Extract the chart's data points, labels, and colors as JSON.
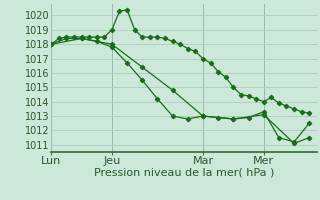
{
  "bg_color": "#cce8d8",
  "grid_color": "#aaccc0",
  "line_color": "#1a6e1a",
  "marker_color": "#1a6e1a",
  "xlabel": "Pression niveau de la mer( hPa )",
  "xlabel_fontsize": 8,
  "ylim": [
    1010.5,
    1020.8
  ],
  "yticks": [
    1011,
    1012,
    1013,
    1014,
    1015,
    1016,
    1017,
    1018,
    1019,
    1020
  ],
  "day_labels": [
    "Lun",
    "Jeu",
    "Mar",
    "Mer"
  ],
  "day_positions": [
    0,
    8,
    20,
    28
  ],
  "xlim": [
    0,
    35
  ],
  "series1_x": [
    0,
    1,
    2,
    3,
    4,
    5,
    6,
    7,
    8,
    9,
    10,
    11,
    12,
    13,
    14,
    15,
    16,
    17,
    18,
    19,
    20,
    21,
    22,
    23,
    24,
    25,
    26,
    27,
    28,
    29,
    30,
    31,
    32,
    33,
    34
  ],
  "series1_y": [
    1018.0,
    1018.4,
    1018.5,
    1018.5,
    1018.5,
    1018.5,
    1018.5,
    1018.5,
    1019.0,
    1020.3,
    1020.4,
    1019.0,
    1018.5,
    1018.5,
    1018.5,
    1018.4,
    1018.2,
    1018.0,
    1017.7,
    1017.5,
    1017.0,
    1016.7,
    1016.1,
    1015.7,
    1015.0,
    1014.5,
    1014.4,
    1014.2,
    1014.0,
    1014.3,
    1013.9,
    1013.7,
    1013.5,
    1013.3,
    1013.2
  ],
  "series2_x": [
    0,
    2,
    4,
    6,
    8,
    10,
    12,
    14,
    16,
    18,
    20,
    22,
    24,
    26,
    28,
    30,
    32,
    34
  ],
  "series2_y": [
    1018.0,
    1018.4,
    1018.4,
    1018.2,
    1017.8,
    1016.7,
    1015.5,
    1014.2,
    1013.0,
    1012.8,
    1013.0,
    1012.9,
    1012.8,
    1012.9,
    1013.3,
    1011.5,
    1011.2,
    1012.5
  ],
  "series3_x": [
    0,
    4,
    8,
    12,
    16,
    20,
    24,
    28,
    32,
    34
  ],
  "series3_y": [
    1018.0,
    1018.4,
    1018.0,
    1016.4,
    1014.8,
    1013.0,
    1012.8,
    1013.1,
    1011.1,
    1011.5
  ],
  "vlines_x": [
    0,
    8,
    20,
    28
  ],
  "figsize": [
    3.2,
    2.0
  ],
  "dpi": 100,
  "tick_labelsize": 7,
  "ylabel_color": "#2a5a2a",
  "vline_color": "#556655"
}
